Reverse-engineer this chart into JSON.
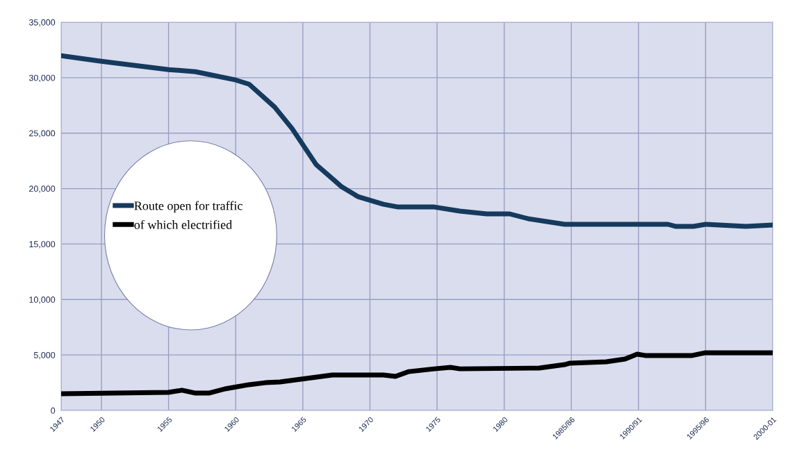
{
  "chart_data": {
    "type": "line",
    "xlim": [
      1947,
      2000
    ],
    "xticks": [
      1947,
      1950,
      1955,
      1960,
      1965,
      1970,
      1975,
      1980,
      {
        "value": 1985,
        "label": "1985/86"
      },
      {
        "value": 1990,
        "label": "1990/91"
      },
      {
        "value": 1995,
        "label": "1995/96"
      },
      {
        "value": 2000,
        "label": "2000-01"
      }
    ],
    "ylim": [
      0,
      35000
    ],
    "yticks": [
      {
        "value": 0,
        "label": "0"
      },
      {
        "value": 5000,
        "label": "5,000"
      },
      {
        "value": 10000,
        "label": "10,000"
      },
      {
        "value": 15000,
        "label": "15,000"
      },
      {
        "value": 20000,
        "label": "20,000"
      },
      {
        "value": 25000,
        "label": "25,000"
      },
      {
        "value": 30000,
        "label": "30,000"
      },
      {
        "value": 35000,
        "label": "35,000"
      }
    ],
    "grid": true,
    "legend": "left",
    "marker": "none",
    "line_style": "solid",
    "series": [
      {
        "name": "Route open for traffic",
        "color": "#153a5e",
        "x": [
          1947,
          1950,
          1955,
          1957,
          1960,
          1961,
          1962.9,
          1964.2,
          1966,
          1967.9,
          1969.1,
          1971,
          1972.1,
          1974.8,
          1976.7,
          1978.7,
          1980.4,
          1981.8,
          1984.5,
          1992.2,
          1992.8,
          1994.1,
          1995,
          1996,
          1998,
          2000
        ],
        "values": [
          31980,
          31480,
          30730,
          30540,
          29790,
          29410,
          27350,
          25410,
          22160,
          20160,
          19280,
          18590,
          18340,
          18340,
          17970,
          17720,
          17720,
          17280,
          16780,
          16780,
          16590,
          16590,
          16780,
          16720,
          16590,
          16720
        ]
      },
      {
        "name": "of which electrified",
        "color": "#000000",
        "x": [
          1947,
          1955,
          1956,
          1957,
          1958,
          1959.2,
          1961,
          1962.2,
          1963.3,
          1967.2,
          1971,
          1971.9,
          1972.9,
          1974.8,
          1976,
          1976.7,
          1982.6,
          1984.5,
          1984.9,
          1987.6,
          1989,
          1989.9,
          1990.5,
          1994,
          1995,
          2000
        ],
        "values": [
          1500,
          1630,
          1820,
          1560,
          1560,
          1940,
          2320,
          2500,
          2570,
          3190,
          3190,
          3070,
          3500,
          3750,
          3880,
          3750,
          3820,
          4130,
          4260,
          4380,
          4630,
          5070,
          4950,
          4950,
          5200,
          5200
        ]
      }
    ]
  }
}
